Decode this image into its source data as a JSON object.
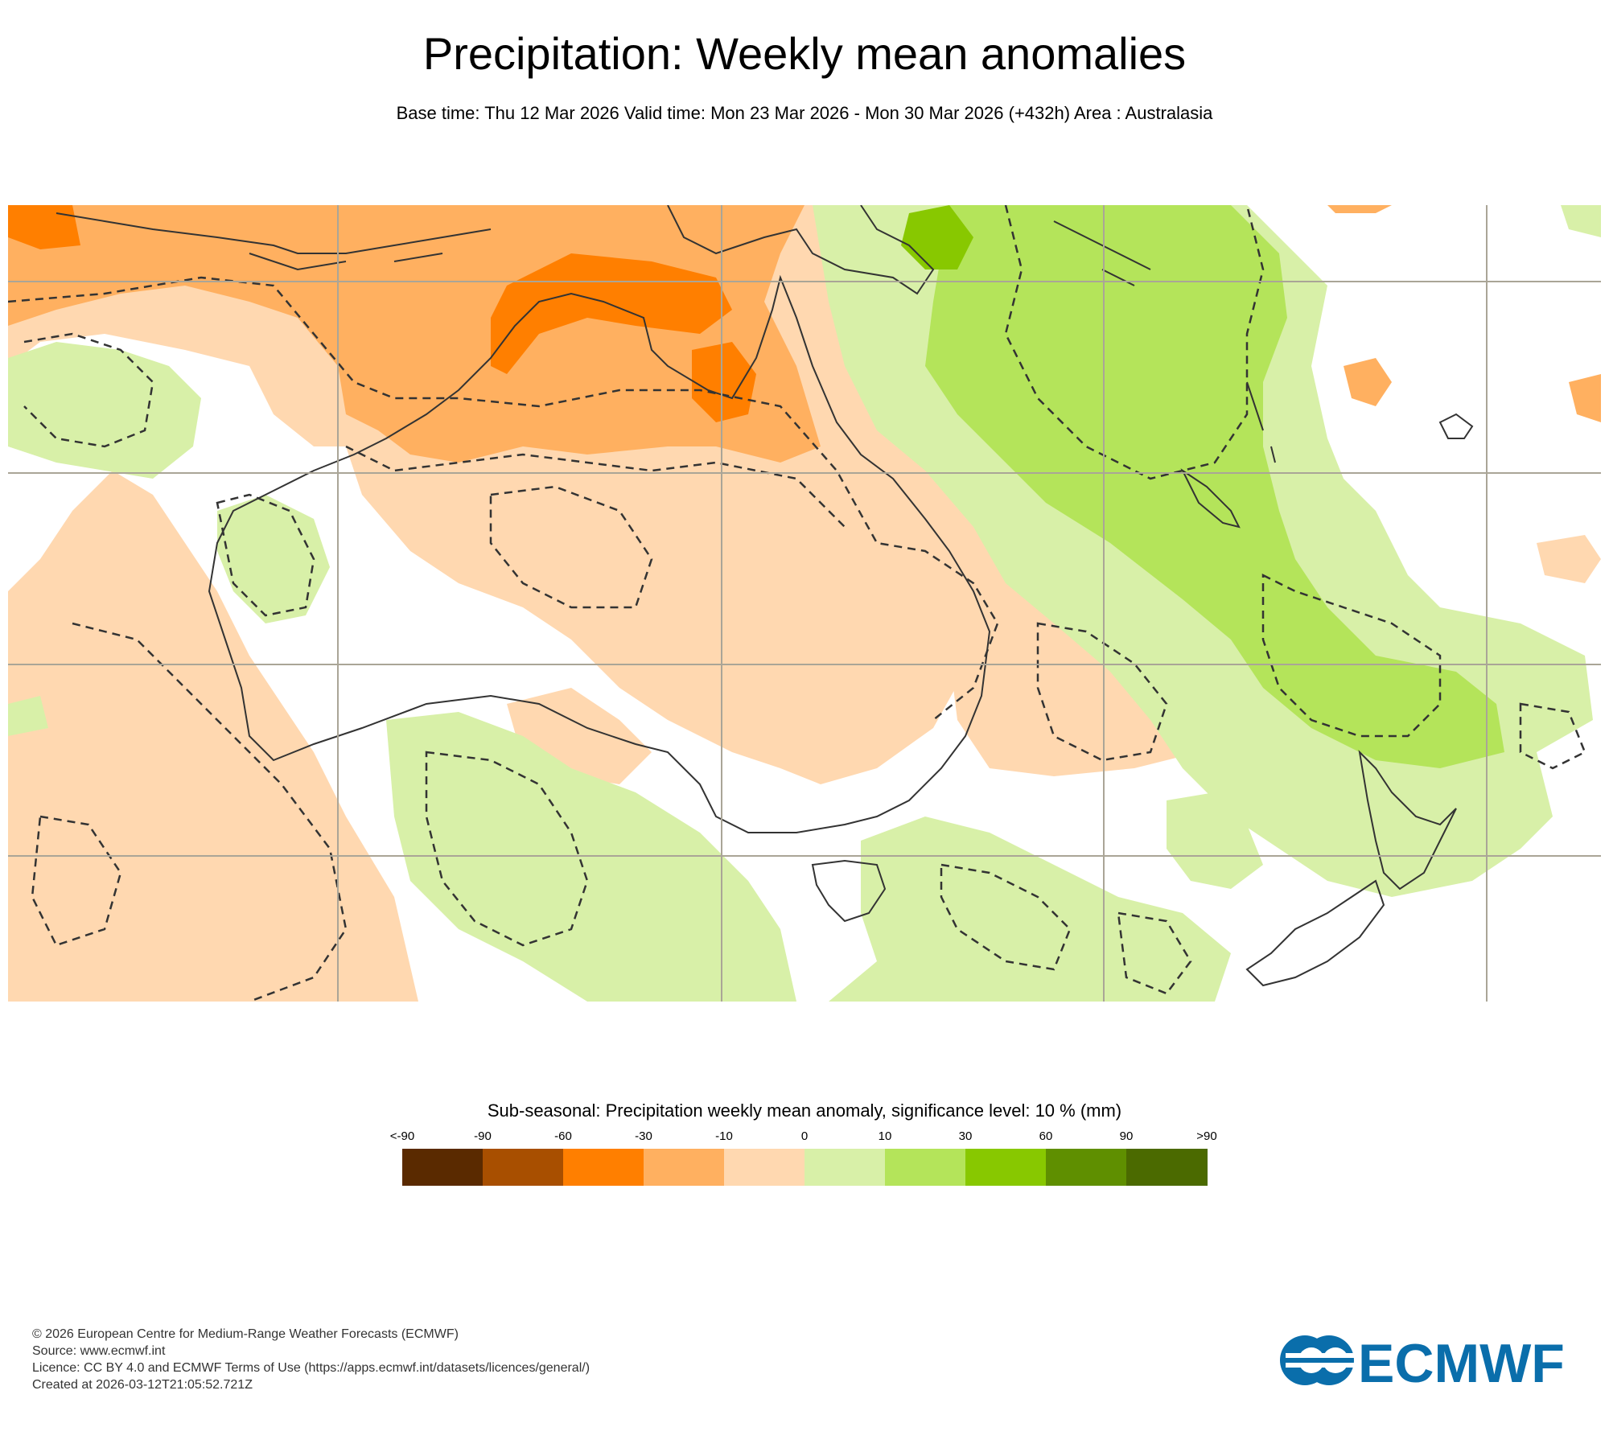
{
  "title": "Precipitation: Weekly mean anomalies",
  "subtitle": "Base time: Thu 12 Mar 2026 Valid time: Mon 23 Mar 2026 - Mon 30 Mar 2026 (+432h) Area : Australasia",
  "legend": {
    "title": "Sub-seasonal: Precipitation weekly mean anomaly, significance level: 10 % (mm)",
    "ticks": [
      "<-90",
      "-90",
      "-60",
      "-30",
      "-10",
      "0",
      "10",
      "30",
      "60",
      "90",
      ">90"
    ],
    "colors": [
      "#5a2a00",
      "#a84f00",
      "#ff7f00",
      "#ffb060",
      "#ffd8b0",
      "#d8f0a8",
      "#b4e45a",
      "#88c800",
      "#5f8f00",
      "#4b6a00"
    ]
  },
  "map": {
    "region": "Australasia",
    "land_color": "#ffffff",
    "coast_color": "#333333",
    "grid_color": "#aaa597"
  },
  "footer": {
    "line1": "© 2026 European Centre for Medium-Range Weather Forecasts (ECMWF)",
    "line2": "Source: www.ecmwf.int",
    "line3": "Licence: CC BY 4.0 and ECMWF Terms of Use (https://apps.ecmwf.int/datasets/licences/general/)",
    "line4": "Created at 2026-03-12T21:05:52.721Z"
  },
  "logo": {
    "text": "ECMWF",
    "color": "#0a6eab"
  }
}
